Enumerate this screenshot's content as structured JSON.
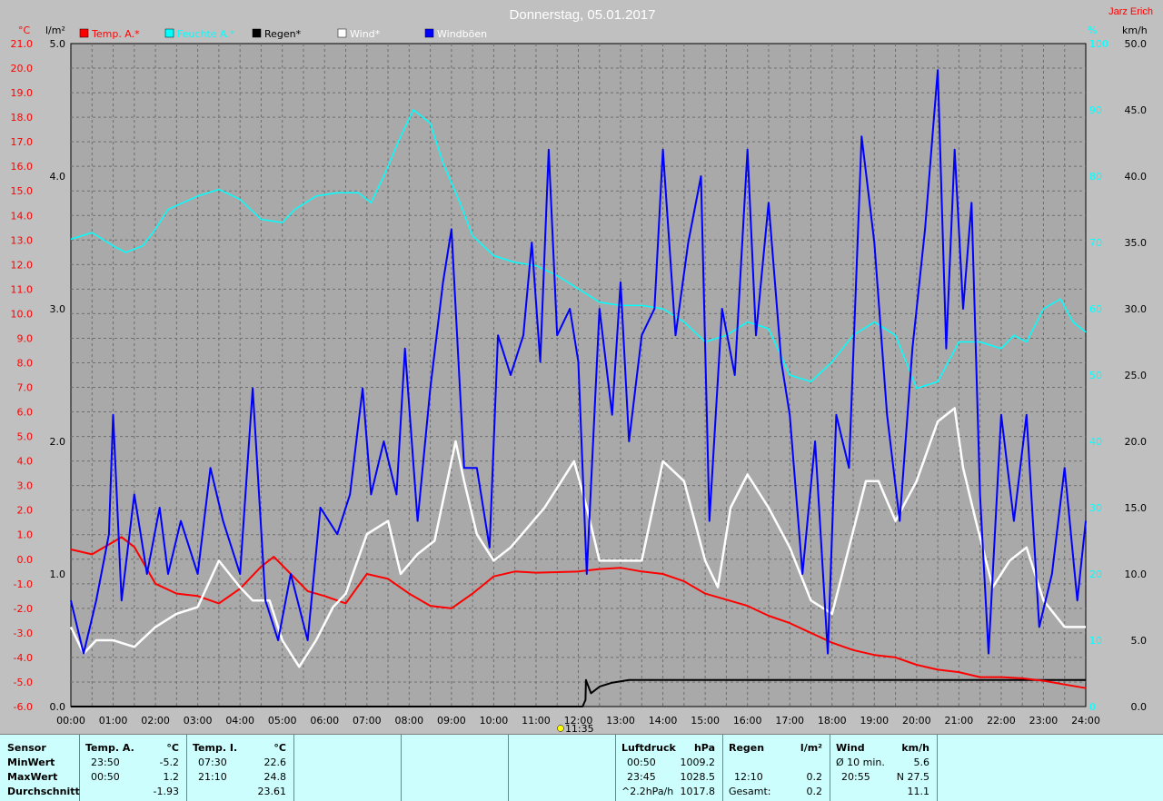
{
  "chart_data": {
    "type": "line",
    "title": "Donnerstag, 05.01.2017",
    "author": "Jarz Erich",
    "left_axis_1": {
      "unit": "°C",
      "min": -6.0,
      "max": 21.0,
      "step": 1.0,
      "color": "#ff0000"
    },
    "left_axis_2": {
      "unit": "l/m²",
      "min": 0.0,
      "max": 5.0,
      "step": 1.0,
      "color": "#000000"
    },
    "right_axis_1": {
      "unit": "%",
      "min": 0,
      "max": 100,
      "step": 10,
      "color": "#00ffff"
    },
    "right_axis_2": {
      "unit": "km/h",
      "min": 0.0,
      "max": 50.0,
      "step": 5.0,
      "color": "#000000"
    },
    "x_ticks": [
      "00:00",
      "01:00",
      "02:00",
      "03:00",
      "04:00",
      "05:00",
      "06:00",
      "07:00",
      "08:00",
      "09:00",
      "10:00",
      "11:00",
      "12:00",
      "13:00",
      "14:00",
      "15:00",
      "16:00",
      "17:00",
      "18:00",
      "19:00",
      "20:00",
      "21:00",
      "22:00",
      "23:00",
      "24:00"
    ],
    "marker": {
      "label": "11:35",
      "hour": 11.58
    },
    "legend": [
      {
        "name": "Temp. A.*",
        "color": "#ff0000"
      },
      {
        "name": "Feuchte A.*",
        "color": "#00ffff"
      },
      {
        "name": "Regen*",
        "color": "#000000"
      },
      {
        "name": "Wind*",
        "color": "#ffffff"
      },
      {
        "name": "Windböen",
        "color": "#0000ff"
      }
    ],
    "series": [
      {
        "name": "Temp. A.*",
        "axis": "left_axis_1",
        "color": "#ff0000",
        "points": [
          [
            0,
            0.4
          ],
          [
            0.5,
            0.2
          ],
          [
            0.8,
            0.5
          ],
          [
            1.2,
            0.9
          ],
          [
            1.5,
            0.5
          ],
          [
            2.0,
            -1.0
          ],
          [
            2.5,
            -1.4
          ],
          [
            3.0,
            -1.5
          ],
          [
            3.5,
            -1.8
          ],
          [
            4.0,
            -1.2
          ],
          [
            4.5,
            -0.3
          ],
          [
            4.8,
            0.1
          ],
          [
            5.2,
            -0.6
          ],
          [
            5.6,
            -1.3
          ],
          [
            6.0,
            -1.5
          ],
          [
            6.5,
            -1.8
          ],
          [
            7.0,
            -0.6
          ],
          [
            7.5,
            -0.8
          ],
          [
            8.0,
            -1.4
          ],
          [
            8.5,
            -1.9
          ],
          [
            9.0,
            -2.0
          ],
          [
            9.5,
            -1.4
          ],
          [
            10.0,
            -0.7
          ],
          [
            10.5,
            -0.5
          ],
          [
            11.0,
            -0.55
          ],
          [
            12.0,
            -0.5
          ],
          [
            12.5,
            -0.4
          ],
          [
            13.0,
            -0.35
          ],
          [
            13.5,
            -0.5
          ],
          [
            14.0,
            -0.6
          ],
          [
            14.5,
            -0.9
          ],
          [
            15.0,
            -1.4
          ],
          [
            16.0,
            -1.9
          ],
          [
            16.5,
            -2.3
          ],
          [
            17.0,
            -2.6
          ],
          [
            17.5,
            -3.0
          ],
          [
            18.0,
            -3.4
          ],
          [
            18.5,
            -3.7
          ],
          [
            19.0,
            -3.9
          ],
          [
            19.5,
            -4.0
          ],
          [
            20.0,
            -4.3
          ],
          [
            20.5,
            -4.5
          ],
          [
            21.0,
            -4.6
          ],
          [
            21.5,
            -4.8
          ],
          [
            22.0,
            -4.8
          ],
          [
            22.5,
            -4.85
          ],
          [
            23.0,
            -4.95
          ],
          [
            23.5,
            -5.1
          ],
          [
            24.0,
            -5.25
          ]
        ]
      },
      {
        "name": "Feuchte A.*",
        "axis": "right_axis_1",
        "color": "#00ffff",
        "points": [
          [
            0,
            70.5
          ],
          [
            0.5,
            71.5
          ],
          [
            1.0,
            69.5
          ],
          [
            1.3,
            68.5
          ],
          [
            1.7,
            69.5
          ],
          [
            2.0,
            72
          ],
          [
            2.3,
            75
          ],
          [
            3.0,
            77
          ],
          [
            3.5,
            78
          ],
          [
            4.0,
            76.5
          ],
          [
            4.5,
            73.5
          ],
          [
            5.0,
            73
          ],
          [
            5.3,
            75
          ],
          [
            5.8,
            77
          ],
          [
            6.3,
            77.5
          ],
          [
            6.8,
            77.5
          ],
          [
            7.1,
            76
          ],
          [
            7.4,
            80
          ],
          [
            7.8,
            86
          ],
          [
            8.1,
            90
          ],
          [
            8.5,
            88
          ],
          [
            8.8,
            82
          ],
          [
            9.2,
            76
          ],
          [
            9.5,
            71
          ],
          [
            10.0,
            68
          ],
          [
            10.5,
            67
          ],
          [
            11.0,
            66.5
          ],
          [
            11.5,
            65
          ],
          [
            12.0,
            63
          ],
          [
            12.5,
            61
          ],
          [
            13.0,
            60.5
          ],
          [
            13.5,
            60.5
          ],
          [
            14.0,
            60
          ],
          [
            14.5,
            58
          ],
          [
            15.0,
            55
          ],
          [
            15.5,
            56
          ],
          [
            16.0,
            58
          ],
          [
            16.5,
            57
          ],
          [
            17.0,
            50
          ],
          [
            17.5,
            49
          ],
          [
            18.0,
            52
          ],
          [
            18.5,
            56
          ],
          [
            19.0,
            58
          ],
          [
            19.5,
            56
          ],
          [
            20.0,
            48
          ],
          [
            20.5,
            49
          ],
          [
            21.0,
            55
          ],
          [
            21.5,
            55
          ],
          [
            22.0,
            54
          ],
          [
            22.3,
            56
          ],
          [
            22.6,
            55
          ],
          [
            23.0,
            60
          ],
          [
            23.4,
            61.5
          ],
          [
            23.7,
            58
          ],
          [
            24.0,
            56.5
          ]
        ]
      },
      {
        "name": "Regen*",
        "axis": "left_axis_2",
        "color": "#000000",
        "points": [
          [
            0,
            0
          ],
          [
            12.1,
            0
          ],
          [
            12.17,
            0.05
          ],
          [
            12.18,
            0.2
          ],
          [
            12.3,
            0.1
          ],
          [
            12.5,
            0.15
          ],
          [
            12.8,
            0.18
          ],
          [
            13.2,
            0.2
          ],
          [
            14.0,
            0.2
          ],
          [
            24.0,
            0.2
          ]
        ]
      },
      {
        "name": "Wind*",
        "axis": "right_axis_2",
        "color": "#ffffff",
        "points": [
          [
            0,
            6
          ],
          [
            0.3,
            4
          ],
          [
            0.6,
            5
          ],
          [
            1.0,
            5
          ],
          [
            1.5,
            4.5
          ],
          [
            2.0,
            6
          ],
          [
            2.5,
            7
          ],
          [
            3.0,
            7.5
          ],
          [
            3.5,
            11
          ],
          [
            4.0,
            9
          ],
          [
            4.3,
            8
          ],
          [
            4.7,
            8
          ],
          [
            5.0,
            5
          ],
          [
            5.4,
            3
          ],
          [
            5.8,
            5
          ],
          [
            6.2,
            7.5
          ],
          [
            6.5,
            8.5
          ],
          [
            7.0,
            13
          ],
          [
            7.5,
            14
          ],
          [
            7.8,
            10
          ],
          [
            8.2,
            11.5
          ],
          [
            8.6,
            12.5
          ],
          [
            8.9,
            17
          ],
          [
            9.1,
            20
          ],
          [
            9.3,
            17
          ],
          [
            9.6,
            13
          ],
          [
            10.0,
            11
          ],
          [
            10.4,
            12
          ],
          [
            10.8,
            13.5
          ],
          [
            11.2,
            15
          ],
          [
            11.6,
            17
          ],
          [
            11.9,
            18.5
          ],
          [
            12.2,
            15
          ],
          [
            12.5,
            11
          ],
          [
            13.0,
            11
          ],
          [
            13.5,
            11
          ],
          [
            14.0,
            18.5
          ],
          [
            14.5,
            17
          ],
          [
            15.0,
            11
          ],
          [
            15.3,
            9
          ],
          [
            15.6,
            15
          ],
          [
            16.0,
            17.5
          ],
          [
            16.5,
            15
          ],
          [
            17.0,
            12
          ],
          [
            17.5,
            8
          ],
          [
            18.0,
            7
          ],
          [
            18.4,
            12
          ],
          [
            18.8,
            17
          ],
          [
            19.1,
            17
          ],
          [
            19.5,
            14
          ],
          [
            20.0,
            17
          ],
          [
            20.5,
            21.5
          ],
          [
            20.9,
            22.5
          ],
          [
            21.1,
            18
          ],
          [
            21.4,
            14
          ],
          [
            21.8,
            9
          ],
          [
            22.2,
            11
          ],
          [
            22.6,
            12
          ],
          [
            23.0,
            8
          ],
          [
            23.5,
            6
          ],
          [
            24.0,
            6
          ]
        ]
      },
      {
        "name": "Windböen",
        "axis": "right_axis_2",
        "color": "#0000ff",
        "points": [
          [
            0,
            8
          ],
          [
            0.3,
            4
          ],
          [
            0.6,
            8
          ],
          [
            0.9,
            13
          ],
          [
            1.0,
            22
          ],
          [
            1.2,
            8
          ],
          [
            1.5,
            16
          ],
          [
            1.8,
            10
          ],
          [
            2.1,
            15
          ],
          [
            2.3,
            10
          ],
          [
            2.6,
            14
          ],
          [
            3.0,
            10
          ],
          [
            3.3,
            18
          ],
          [
            3.6,
            14
          ],
          [
            4.0,
            10
          ],
          [
            4.3,
            24
          ],
          [
            4.6,
            8
          ],
          [
            4.9,
            5
          ],
          [
            5.2,
            10
          ],
          [
            5.6,
            5
          ],
          [
            5.9,
            15
          ],
          [
            6.3,
            13
          ],
          [
            6.6,
            16
          ],
          [
            6.9,
            24
          ],
          [
            7.1,
            16
          ],
          [
            7.4,
            20
          ],
          [
            7.7,
            16
          ],
          [
            7.9,
            27
          ],
          [
            8.2,
            14
          ],
          [
            8.5,
            24
          ],
          [
            8.8,
            32
          ],
          [
            9.0,
            36
          ],
          [
            9.3,
            18
          ],
          [
            9.6,
            18
          ],
          [
            9.9,
            12
          ],
          [
            10.1,
            28
          ],
          [
            10.4,
            25
          ],
          [
            10.7,
            28
          ],
          [
            10.9,
            35
          ],
          [
            11.1,
            26
          ],
          [
            11.3,
            42
          ],
          [
            11.5,
            28
          ],
          [
            11.8,
            30
          ],
          [
            12.0,
            26
          ],
          [
            12.2,
            10
          ],
          [
            12.5,
            30
          ],
          [
            12.8,
            22
          ],
          [
            13.0,
            32
          ],
          [
            13.2,
            20
          ],
          [
            13.5,
            28
          ],
          [
            13.8,
            30
          ],
          [
            14.0,
            42
          ],
          [
            14.3,
            28
          ],
          [
            14.6,
            35
          ],
          [
            14.9,
            40
          ],
          [
            15.1,
            14
          ],
          [
            15.4,
            30
          ],
          [
            15.7,
            25
          ],
          [
            16.0,
            42
          ],
          [
            16.2,
            28
          ],
          [
            16.5,
            38
          ],
          [
            16.8,
            26
          ],
          [
            17.0,
            22
          ],
          [
            17.3,
            10
          ],
          [
            17.6,
            20
          ],
          [
            17.9,
            4
          ],
          [
            18.1,
            22
          ],
          [
            18.4,
            18
          ],
          [
            18.7,
            43
          ],
          [
            19.0,
            35
          ],
          [
            19.3,
            22
          ],
          [
            19.6,
            14
          ],
          [
            19.9,
            27
          ],
          [
            20.2,
            36
          ],
          [
            20.5,
            48
          ],
          [
            20.7,
            27
          ],
          [
            20.9,
            42
          ],
          [
            21.1,
            30
          ],
          [
            21.3,
            38
          ],
          [
            21.5,
            16
          ],
          [
            21.7,
            4
          ],
          [
            22.0,
            22
          ],
          [
            22.3,
            14
          ],
          [
            22.6,
            22
          ],
          [
            22.9,
            6
          ],
          [
            23.2,
            10
          ],
          [
            23.5,
            18
          ],
          [
            23.8,
            8
          ],
          [
            24.0,
            14
          ]
        ]
      }
    ]
  },
  "footer": {
    "sensor": {
      "header": "Sensor",
      "min": "MinWert",
      "max": "MaxWert",
      "avg": "Durchschnitt"
    },
    "temp_a": {
      "header": "Temp. A.",
      "unit": "°C",
      "min_time": "23:50",
      "min_val": "-5.2",
      "max_time": "00:50",
      "max_val": "1.2",
      "avg_val": "-1.93"
    },
    "temp_i": {
      "header": "Temp. I.",
      "unit": "°C",
      "min_time": "07:30",
      "min_val": "22.6",
      "max_time": "21:10",
      "max_val": "24.8",
      "avg_val": "23.61"
    },
    "pressure": {
      "header": "Luftdruck",
      "unit": "hPa",
      "min_time": "00:50",
      "min_val": "1009.2",
      "max_time": "23:45",
      "max_val": "1028.5",
      "avg_label": "^2.2hPa/h",
      "avg_val": "1017.8"
    },
    "rain": {
      "header": "Regen",
      "unit": "l/m²",
      "max_time": "12:10",
      "max_val": "0.2",
      "total_label": "Gesamt:",
      "total_val": "0.2"
    },
    "wind": {
      "header": "Wind",
      "unit": "km/h",
      "min_label": "Ø 10 min.",
      "min_val": "5.6",
      "max_time": "20:55",
      "max_val": "N 27.5",
      "avg_val": "11.1"
    }
  }
}
